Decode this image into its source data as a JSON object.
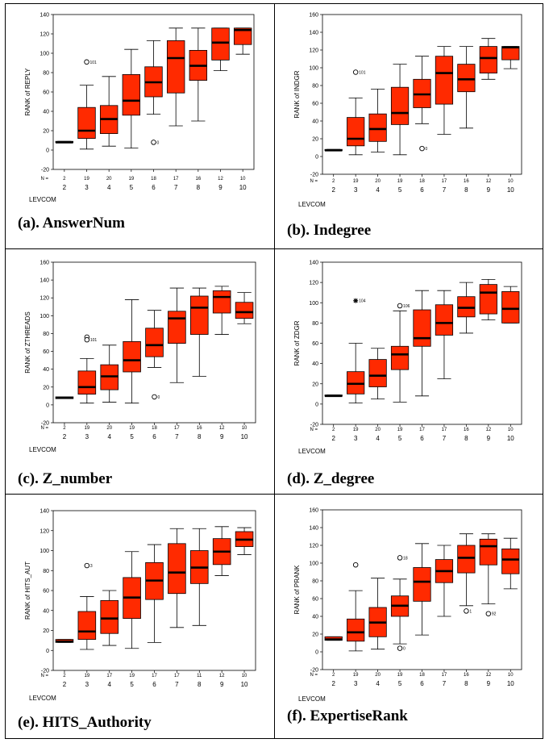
{
  "chart_data": [
    {
      "type": "boxplot",
      "ylabel": "RANK of REPLY",
      "xlabel": "LEVCOM",
      "caption": "(a). AnswerNum",
      "ylim": [
        -20,
        140
      ],
      "yticks": [
        "-20",
        "0",
        "20",
        "40",
        "60",
        "80",
        "100",
        "120",
        "140"
      ],
      "n_label": "N =",
      "categories": [
        "2",
        "3",
        "4",
        "5",
        "6",
        "7",
        "8",
        "9",
        "10"
      ],
      "n": [
        "2",
        "19",
        "20",
        "19",
        "18",
        "17",
        "16",
        "12",
        "10"
      ],
      "boxes": [
        {
          "min": 8,
          "q1": 8,
          "median": 8,
          "q3": 9,
          "max": 9
        },
        {
          "min": 1,
          "q1": 12,
          "median": 20,
          "q3": 44,
          "max": 67
        },
        {
          "min": 4,
          "q1": 17,
          "median": 32,
          "q3": 46,
          "max": 76
        },
        {
          "min": 2,
          "q1": 36,
          "median": 51,
          "q3": 78,
          "max": 104
        },
        {
          "min": 37,
          "q1": 55,
          "median": 70,
          "q3": 86,
          "max": 113
        },
        {
          "min": 25,
          "q1": 59,
          "median": 95,
          "q3": 113,
          "max": 126
        },
        {
          "min": 30,
          "q1": 72,
          "median": 87,
          "q3": 103,
          "max": 126
        },
        {
          "min": 82,
          "q1": 93,
          "median": 111,
          "q3": 126,
          "max": 126
        },
        {
          "min": 99,
          "q1": 109,
          "median": 124,
          "q3": 126,
          "max": 126
        }
      ],
      "outliers": [
        {
          "cat": "3",
          "value": 91,
          "symbol": "circle",
          "label": "101"
        },
        {
          "cat": "6",
          "value": 8,
          "symbol": "circle",
          "label": "0"
        }
      ]
    },
    {
      "type": "boxplot",
      "ylabel": "RANK of INDGR",
      "xlabel": "LEVCOM",
      "caption": "(b). Indegree",
      "ylim": [
        -20,
        160
      ],
      "yticks": [
        "-20",
        "0",
        "20",
        "40",
        "60",
        "80",
        "100",
        "120",
        "140",
        "160"
      ],
      "n_label": "N =",
      "categories": [
        "2",
        "3",
        "4",
        "5",
        "6",
        "7",
        "8",
        "9",
        "10"
      ],
      "n": [
        "2",
        "19",
        "20",
        "19",
        "18",
        "17",
        "16",
        "12",
        "10"
      ],
      "boxes": [
        {
          "min": 7,
          "q1": 7,
          "median": 7,
          "q3": 8,
          "max": 8
        },
        {
          "min": 2,
          "q1": 12,
          "median": 20,
          "q3": 44,
          "max": 66
        },
        {
          "min": 5,
          "q1": 17,
          "median": 31,
          "q3": 48,
          "max": 76
        },
        {
          "min": 2,
          "q1": 36,
          "median": 49,
          "q3": 78,
          "max": 104
        },
        {
          "min": 37,
          "q1": 55,
          "median": 70,
          "q3": 87,
          "max": 113
        },
        {
          "min": 25,
          "q1": 59,
          "median": 94,
          "q3": 113,
          "max": 124
        },
        {
          "min": 32,
          "q1": 73,
          "median": 87,
          "q3": 104,
          "max": 124
        },
        {
          "min": 87,
          "q1": 94,
          "median": 111,
          "q3": 124,
          "max": 133
        },
        {
          "min": 99,
          "q1": 109,
          "median": 123,
          "q3": 124,
          "max": 124
        }
      ],
      "outliers": [
        {
          "cat": "3",
          "value": 95,
          "symbol": "circle",
          "label": "101"
        },
        {
          "cat": "6",
          "value": 9,
          "symbol": "circle",
          "label": "0"
        }
      ]
    },
    {
      "type": "boxplot",
      "ylabel": "RANK of ZTHREADS",
      "xlabel": "LEVCOM",
      "caption": "(c). Z_number",
      "ylim": [
        -20,
        160
      ],
      "yticks": [
        "-20",
        "0",
        "20",
        "40",
        "60",
        "80",
        "100",
        "120",
        "140",
        "160"
      ],
      "n_label": "N =",
      "categories": [
        "2",
        "3",
        "4",
        "5",
        "6",
        "7",
        "8",
        "9",
        "10"
      ],
      "n": [
        "2",
        "19",
        "20",
        "19",
        "18",
        "17",
        "16",
        "12",
        "10"
      ],
      "boxes": [
        {
          "min": 7,
          "q1": 7,
          "median": 8,
          "q3": 9,
          "max": 9
        },
        {
          "min": 2,
          "q1": 12,
          "median": 20,
          "q3": 38,
          "max": 52
        },
        {
          "min": 3,
          "q1": 17,
          "median": 32,
          "q3": 45,
          "max": 67
        },
        {
          "min": 2,
          "q1": 37,
          "median": 50,
          "q3": 71,
          "max": 118
        },
        {
          "min": 42,
          "q1": 54,
          "median": 67,
          "q3": 86,
          "max": 106
        },
        {
          "min": 25,
          "q1": 69,
          "median": 97,
          "q3": 105,
          "max": 131
        },
        {
          "min": 32,
          "q1": 79,
          "median": 109,
          "q3": 122,
          "max": 131
        },
        {
          "min": 79,
          "q1": 103,
          "median": 121,
          "q3": 128,
          "max": 133
        },
        {
          "min": 91,
          "q1": 97,
          "median": 104,
          "q3": 115,
          "max": 126
        }
      ],
      "outliers": [
        {
          "cat": "3",
          "value": 76,
          "symbol": "circle",
          "label": ""
        },
        {
          "cat": "3",
          "value": 73,
          "symbol": "circle",
          "label": "101"
        },
        {
          "cat": "6",
          "value": 9,
          "symbol": "circle",
          "label": "0"
        }
      ]
    },
    {
      "type": "boxplot",
      "ylabel": "RANK of ZDGR",
      "xlabel": "LEVCOM",
      "caption": "(d). Z_degree",
      "ylim": [
        -20,
        140
      ],
      "yticks": [
        "-20",
        "0",
        "20",
        "40",
        "60",
        "80",
        "100",
        "120",
        "140"
      ],
      "n_label": "N =",
      "categories": [
        "2",
        "3",
        "4",
        "5",
        "6",
        "7",
        "8",
        "9",
        "10"
      ],
      "n": [
        "2",
        "19",
        "20",
        "19",
        "17",
        "17",
        "16",
        "12",
        "10"
      ],
      "boxes": [
        {
          "min": 8,
          "q1": 8,
          "median": 8,
          "q3": 9,
          "max": 9
        },
        {
          "min": 1,
          "q1": 10,
          "median": 20,
          "q3": 32,
          "max": 60
        },
        {
          "min": 5,
          "q1": 17,
          "median": 28,
          "q3": 44,
          "max": 55
        },
        {
          "min": 2,
          "q1": 34,
          "median": 49,
          "q3": 57,
          "max": 92
        },
        {
          "min": 8,
          "q1": 57,
          "median": 65,
          "q3": 93,
          "max": 112
        },
        {
          "min": 25,
          "q1": 68,
          "median": 80,
          "q3": 98,
          "max": 112
        },
        {
          "min": 70,
          "q1": 86,
          "median": 95,
          "q3": 106,
          "max": 120
        },
        {
          "min": 83,
          "q1": 89,
          "median": 110,
          "q3": 118,
          "max": 123
        },
        {
          "min": 80,
          "q1": 80,
          "median": 94,
          "q3": 111,
          "max": 116
        }
      ],
      "outliers": [
        {
          "cat": "3",
          "value": 102,
          "symbol": "star",
          "label": "104"
        },
        {
          "cat": "5",
          "value": 97,
          "symbol": "circle",
          "label": "106"
        }
      ]
    },
    {
      "type": "boxplot",
      "ylabel": "RANK of HITS_AUT",
      "xlabel": "LEVCOM",
      "caption": "(e). HITS_Authority",
      "ylim": [
        -20,
        140
      ],
      "yticks": [
        "-20",
        "0",
        "20",
        "40",
        "60",
        "80",
        "100",
        "120",
        "140"
      ],
      "n_label": "N =",
      "categories": [
        "2",
        "3",
        "4",
        "5",
        "6",
        "7",
        "8",
        "9",
        "10"
      ],
      "n": [
        "2",
        "19",
        "17",
        "19",
        "17",
        "17",
        "11",
        "12",
        "10"
      ],
      "boxes": [
        {
          "min": 8,
          "q1": 8,
          "median": 9,
          "q3": 11,
          "max": 11
        },
        {
          "min": 1,
          "q1": 11,
          "median": 19,
          "q3": 39,
          "max": 54
        },
        {
          "min": 5,
          "q1": 17,
          "median": 32,
          "q3": 50,
          "max": 60
        },
        {
          "min": 2,
          "q1": 32,
          "median": 53,
          "q3": 73,
          "max": 99
        },
        {
          "min": 8,
          "q1": 51,
          "median": 70,
          "q3": 88,
          "max": 106
        },
        {
          "min": 23,
          "q1": 57,
          "median": 78,
          "q3": 107,
          "max": 122
        },
        {
          "min": 25,
          "q1": 67,
          "median": 83,
          "q3": 100,
          "max": 122
        },
        {
          "min": 75,
          "q1": 86,
          "median": 99,
          "q3": 112,
          "max": 124
        },
        {
          "min": 96,
          "q1": 104,
          "median": 111,
          "q3": 119,
          "max": 123
        }
      ],
      "outliers": [
        {
          "cat": "3",
          "value": 85,
          "symbol": "circle",
          "label": "3"
        }
      ]
    },
    {
      "type": "boxplot",
      "ylabel": "RANK of PRANK",
      "xlabel": "LEVCOM",
      "caption": "(f). ExpertiseRank",
      "ylim": [
        -20,
        160
      ],
      "yticks": [
        "-20",
        "0",
        "20",
        "40",
        "60",
        "80",
        "100",
        "120",
        "140",
        "160"
      ],
      "n_label": "N =",
      "categories": [
        "2",
        "3",
        "4",
        "5",
        "6",
        "7",
        "8",
        "9",
        "10"
      ],
      "n": [
        "2",
        "19",
        "20",
        "19",
        "18",
        "17",
        "16",
        "12",
        "10"
      ],
      "boxes": [
        {
          "min": 13,
          "q1": 13,
          "median": 14,
          "q3": 17,
          "max": 17
        },
        {
          "min": 1,
          "q1": 12,
          "median": 22,
          "q3": 37,
          "max": 69
        },
        {
          "min": 3,
          "q1": 17,
          "median": 33,
          "q3": 50,
          "max": 83
        },
        {
          "min": 9,
          "q1": 40,
          "median": 52,
          "q3": 63,
          "max": 82
        },
        {
          "min": 19,
          "q1": 57,
          "median": 79,
          "q3": 95,
          "max": 122
        },
        {
          "min": 40,
          "q1": 78,
          "median": 91,
          "q3": 104,
          "max": 120
        },
        {
          "min": 52,
          "q1": 89,
          "median": 106,
          "q3": 120,
          "max": 133
        },
        {
          "min": 54,
          "q1": 98,
          "median": 119,
          "q3": 127,
          "max": 133
        },
        {
          "min": 71,
          "q1": 88,
          "median": 104,
          "q3": 116,
          "max": 128
        }
      ],
      "outliers": [
        {
          "cat": "3",
          "value": 98,
          "symbol": "circle",
          "label": ""
        },
        {
          "cat": "5",
          "value": 106,
          "symbol": "circle",
          "label": "18"
        },
        {
          "cat": "5",
          "value": 4,
          "symbol": "circle",
          "label": "0"
        },
        {
          "cat": "8",
          "value": 46,
          "symbol": "circle",
          "label": "1"
        },
        {
          "cat": "9",
          "value": 43,
          "symbol": "circle",
          "label": "92"
        }
      ]
    }
  ],
  "colors": {
    "box": "#ff2a00",
    "border": "#000000",
    "background": "#ffffff"
  }
}
